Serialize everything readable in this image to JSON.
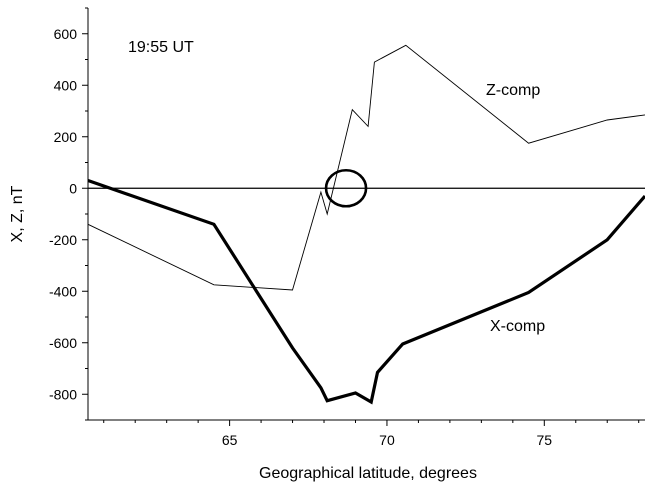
{
  "chart_data": {
    "type": "line",
    "annotation_time": "19:55 UT",
    "xlabel": "Geographical  latitude, degrees",
    "ylabel": "X, Z, nT",
    "xlim": [
      60.5,
      78.2
    ],
    "ylim": [
      -900,
      700
    ],
    "x_ticks": [
      65,
      70,
      75
    ],
    "y_ticks": [
      600,
      400,
      200,
      0,
      -200,
      -400,
      -600,
      -800
    ],
    "grid": false,
    "zero_line": true,
    "series": [
      {
        "name": "Z-comp",
        "line": "thin",
        "x": [
          60.5,
          64.5,
          67.0,
          67.9,
          68.1,
          68.9,
          69.4,
          69.6,
          70.6,
          74.5,
          77.0,
          78.2
        ],
        "y": [
          -140,
          -375,
          -395,
          -15,
          -100,
          305,
          240,
          490,
          555,
          175,
          265,
          285
        ]
      },
      {
        "name": "X-comp",
        "line": "thick",
        "x": [
          60.5,
          64.5,
          67.0,
          67.9,
          68.1,
          69.0,
          69.5,
          69.7,
          70.5,
          74.5,
          77.0,
          78.2
        ],
        "y": [
          30,
          -140,
          -620,
          -775,
          -825,
          -795,
          -830,
          -715,
          -605,
          -405,
          -200,
          -30
        ]
      }
    ],
    "annotations": [
      {
        "type": "circle",
        "x": 68.7,
        "y": 0
      }
    ]
  }
}
